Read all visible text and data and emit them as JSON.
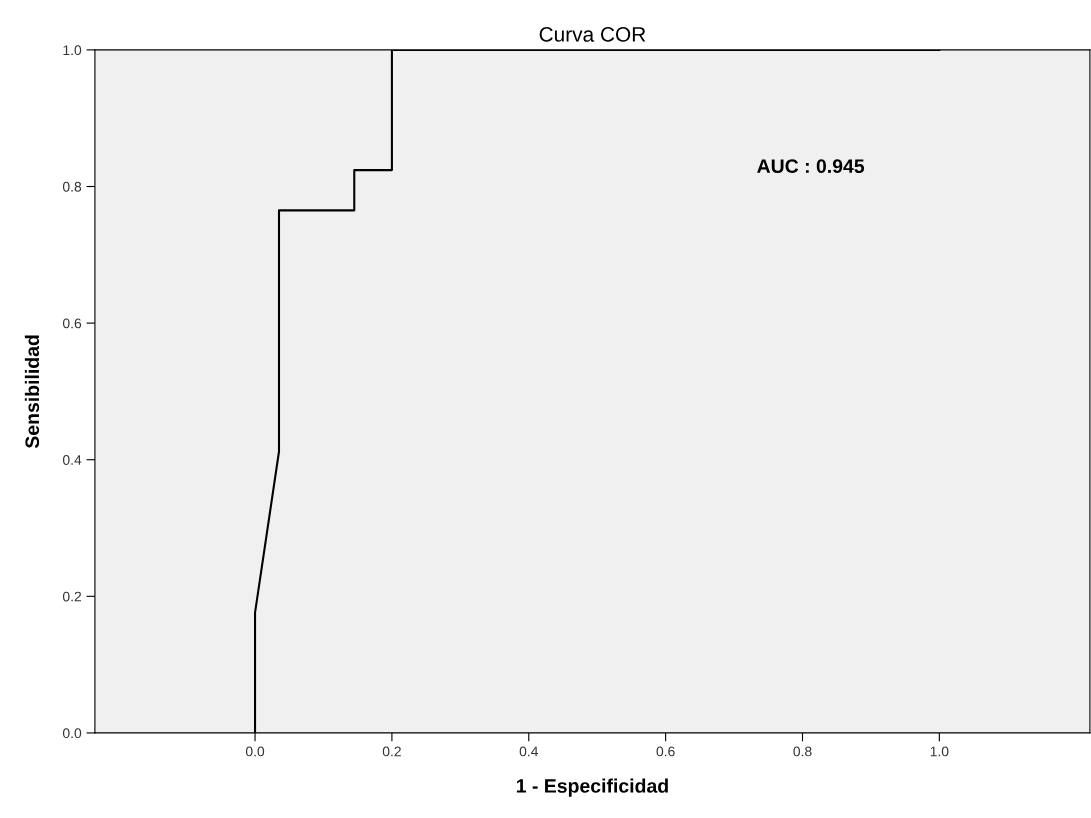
{
  "chart_data": {
    "type": "line",
    "title": "Curva COR",
    "xlabel": "1 - Especificidad",
    "ylabel": "Sensibilidad",
    "x": [
      0,
      0,
      0.035,
      0.035,
      0.145,
      0.145,
      0.2,
      0.2,
      1.0
    ],
    "series": [
      {
        "color": "#000000",
        "values": [
          0,
          0.176,
          0.412,
          0.765,
          0.765,
          0.824,
          0.824,
          1.0,
          1.0
        ]
      }
    ],
    "xlim": [
      -0.234,
      1.22
    ],
    "ylim": [
      0,
      1.0
    ],
    "xticks": [
      {
        "value": 0,
        "label": "0.0"
      },
      {
        "value": 0.2,
        "label": "0.2"
      },
      {
        "value": 0.4,
        "label": "0.4"
      },
      {
        "value": 0.6,
        "label": "0.6"
      },
      {
        "value": 0.8,
        "label": "0.8"
      },
      {
        "value": 1.0,
        "label": "1.0"
      }
    ],
    "yticks": [
      {
        "value": 0,
        "label": "0.0"
      },
      {
        "value": 0.2,
        "label": "0.2"
      },
      {
        "value": 0.4,
        "label": "0.4"
      },
      {
        "value": 0.6,
        "label": "0.6"
      },
      {
        "value": 0.8,
        "label": "0.8"
      },
      {
        "value": 1.0,
        "label": "1.0"
      }
    ],
    "annotations": [
      "AUC : 0.945"
    ],
    "grid": false,
    "legend": false,
    "marker": "none",
    "line_style": "solid"
  }
}
